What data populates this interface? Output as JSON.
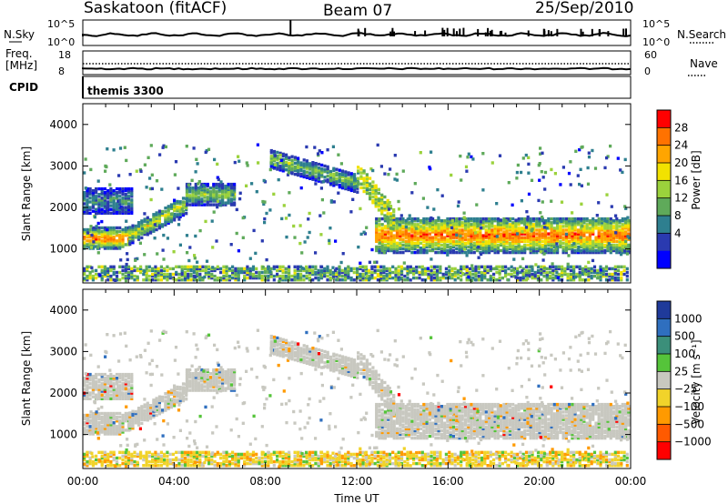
{
  "header": {
    "station": "Saskatoon (fitACF)",
    "beam": "Beam 07",
    "date": "25/Sep/2010"
  },
  "top_panels": {
    "nsky_label": "N.Sky",
    "nsky_ticks": [
      "10^5",
      "10^0"
    ],
    "nsearch_label": "N.Search",
    "nsearch_ticks": [
      "10^5",
      "10^0"
    ],
    "freq_label": "Freq.",
    "freq_unit": "[MHz]",
    "freq_ticks": [
      "18",
      "8"
    ],
    "nave_label": "Nave",
    "nave_ticks": [
      "60",
      "0"
    ],
    "cpid_label": "CPID",
    "cpid_value": "themis 3300"
  },
  "chart_data": [
    {
      "type": "heatmap",
      "panel": "power",
      "ylabel": "Slant Range [km]",
      "yticks": [
        1000,
        2000,
        3000,
        4000
      ],
      "ylim": [
        180,
        4500
      ],
      "xlim": [
        0,
        24
      ],
      "colorbar_label": "Power [dB]",
      "colorbar_ticks": [
        "28",
        "24",
        "20",
        "16",
        "12",
        "8",
        "4"
      ],
      "colorbar_colors": [
        "#ff0000",
        "#ff7200",
        "#ffa500",
        "#f2e200",
        "#9bd23c",
        "#5faa5a",
        "#2e7f8f",
        "#2a3ab0",
        "#0000ff"
      ],
      "echo_bands": [
        {
          "t0": 0.0,
          "t1": 2.0,
          "r0": 1050,
          "r1": 1550,
          "peak": 26
        },
        {
          "t0": 2.0,
          "t1": 4.5,
          "r0": 1150,
          "r1": 2000,
          "peak": 18
        },
        {
          "t0": 4.5,
          "t1": 6.6,
          "r0": 2100,
          "r1": 2600,
          "peak": 15
        },
        {
          "t0": 0.0,
          "t1": 2.2,
          "r0": 1900,
          "r1": 2500,
          "peak": 10
        },
        {
          "t0": 8.2,
          "t1": 12.0,
          "r0": 2500,
          "r1": 3400,
          "peak": 14
        },
        {
          "t0": 12.8,
          "t1": 24.0,
          "r0": 950,
          "r1": 1800,
          "peak": 26
        }
      ]
    },
    {
      "type": "heatmap",
      "panel": "velocity",
      "ylabel": "Slant Range [km]",
      "xlabel": "Time UT",
      "yticks": [
        1000,
        2000,
        3000,
        4000
      ],
      "ylim": [
        180,
        4500
      ],
      "xlim": [
        0,
        24
      ],
      "xticks": [
        "00:00",
        "04:00",
        "08:00",
        "12:00",
        "16:00",
        "20:00",
        "00:00"
      ],
      "colorbar_label": "Velocity [m s⁻¹]",
      "colorbar_ticks": [
        "1000",
        "500",
        "100",
        "25",
        "−25",
        "−100",
        "−500",
        "−1000"
      ],
      "colorbar_colors": [
        "#1f3a9a",
        "#2f6fbf",
        "#3b8f7a",
        "#55c43a",
        "#c8c8c0",
        "#f1d32a",
        "#ff9a00",
        "#ff5a00",
        "#ff0000"
      ]
    }
  ]
}
